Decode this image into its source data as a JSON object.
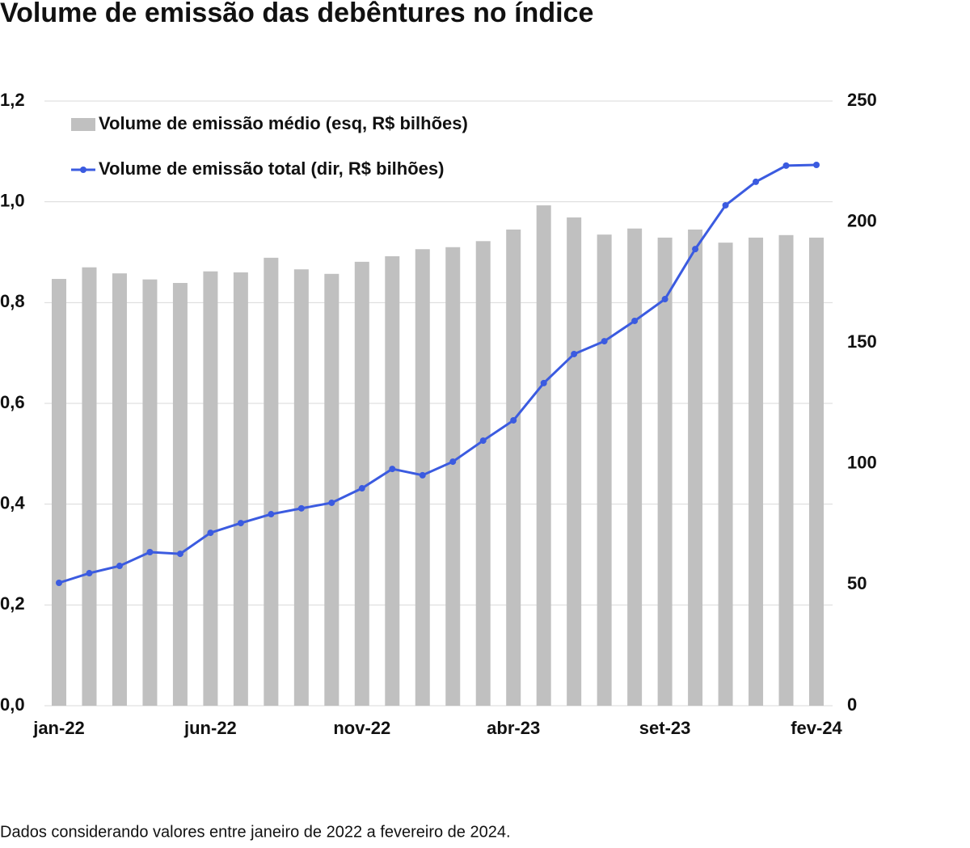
{
  "chart_data": {
    "type": "bar",
    "title": "Volume de emissão das debêntures no índice",
    "footnote": "Dados considerando valores entre janeiro de 2022 a fevereiro de 2024.",
    "categories": [
      "jan-22",
      null,
      null,
      null,
      null,
      "jun-22",
      null,
      null,
      null,
      null,
      "nov-22",
      null,
      null,
      null,
      null,
      "abr-23",
      null,
      null,
      null,
      null,
      "set-23",
      null,
      null,
      null,
      null,
      "fev-24"
    ],
    "series": [
      {
        "name": "Volume de emissão médio (esq, R$ bilhões)",
        "type": "bar",
        "color": "#c0c0c0",
        "values": [
          0.847,
          0.87,
          0.858,
          0.846,
          0.839,
          0.862,
          0.86,
          0.889,
          0.866,
          0.857,
          0.881,
          0.892,
          0.906,
          0.91,
          0.922,
          0.945,
          0.993,
          0.969,
          0.935,
          0.947,
          0.929,
          0.945,
          0.919,
          0.929,
          0.934,
          0.929
        ]
      },
      {
        "name": "Volume de emissão total (dir, R$ bilhões)",
        "type": "line",
        "axis": "y2",
        "color": "#3b5be0",
        "values": [
          50.8,
          54.8,
          57.8,
          63.5,
          62.8,
          71.5,
          75.5,
          79.2,
          81.6,
          83.9,
          89.9,
          97.9,
          95.3,
          100.9,
          109.6,
          118.0,
          133.4,
          145.4,
          150.7,
          159.1,
          168.1,
          188.8,
          206.9,
          216.6,
          223.3,
          223.6
        ]
      }
    ],
    "ylim": [
      0,
      1.2
    ],
    "yticks": [
      {
        "value": 0,
        "label": "0,0"
      },
      {
        "value": 0.2,
        "label": "0,2"
      },
      {
        "value": 0.4,
        "label": "0,4"
      },
      {
        "value": 0.6,
        "label": "0,6"
      },
      {
        "value": 0.8,
        "label": "0,8"
      },
      {
        "value": 1.0,
        "label": "1,0"
      },
      {
        "value": 1.2,
        "label": "1,2"
      }
    ],
    "y2lim": [
      0,
      250
    ],
    "y2ticks": [
      0,
      50,
      100,
      150,
      200,
      250
    ],
    "grid": true,
    "legend": "top-left"
  }
}
